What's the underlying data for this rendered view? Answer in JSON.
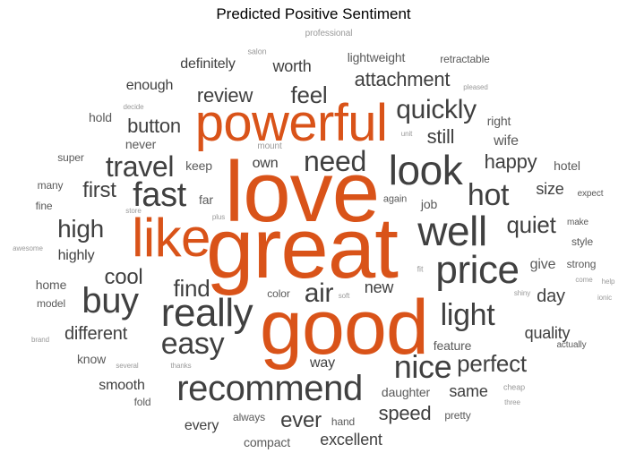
{
  "title": "Predicted Positive Sentiment",
  "colors": {
    "highlight": "#d95319",
    "dark": "#404040",
    "mid": "#5a5a5a",
    "light": "#9a9a9a"
  },
  "words": [
    {
      "text": "love",
      "color": "highlight"
    },
    {
      "text": "great",
      "color": "highlight"
    },
    {
      "text": "good",
      "color": "highlight"
    },
    {
      "text": "powerful",
      "color": "highlight"
    },
    {
      "text": "like",
      "color": "highlight"
    },
    {
      "text": "look",
      "color": "dark"
    },
    {
      "text": "well",
      "color": "dark"
    },
    {
      "text": "price",
      "color": "dark"
    },
    {
      "text": "really",
      "color": "dark"
    },
    {
      "text": "recommend",
      "color": "dark"
    },
    {
      "text": "nice",
      "color": "dark"
    },
    {
      "text": "buy",
      "color": "dark"
    },
    {
      "text": "fast",
      "color": "dark"
    },
    {
      "text": "easy",
      "color": "dark"
    },
    {
      "text": "hot",
      "color": "dark"
    },
    {
      "text": "light",
      "color": "dark"
    },
    {
      "text": "need",
      "color": "dark"
    },
    {
      "text": "travel",
      "color": "dark"
    },
    {
      "text": "quickly",
      "color": "dark"
    },
    {
      "text": "air",
      "color": "dark"
    },
    {
      "text": "perfect",
      "color": "dark"
    },
    {
      "text": "find",
      "color": "dark"
    },
    {
      "text": "high",
      "color": "dark"
    },
    {
      "text": "quiet",
      "color": "dark"
    },
    {
      "text": "cool",
      "color": "dark"
    },
    {
      "text": "feel",
      "color": "dark"
    },
    {
      "text": "happy",
      "color": "dark"
    },
    {
      "text": "first",
      "color": "dark"
    },
    {
      "text": "button",
      "color": "dark"
    },
    {
      "text": "review",
      "color": "dark"
    },
    {
      "text": "attachment",
      "color": "dark"
    },
    {
      "text": "speed",
      "color": "dark"
    },
    {
      "text": "ever",
      "color": "dark"
    },
    {
      "text": "still",
      "color": "dark"
    },
    {
      "text": "different",
      "color": "dark"
    },
    {
      "text": "day",
      "color": "dark"
    },
    {
      "text": "new",
      "color": "dark"
    },
    {
      "text": "excellent",
      "color": "dark"
    },
    {
      "text": "quality",
      "color": "dark"
    },
    {
      "text": "worth",
      "color": "dark"
    },
    {
      "text": "definitely",
      "color": "dark"
    },
    {
      "text": "enough",
      "color": "dark"
    },
    {
      "text": "smooth",
      "color": "dark"
    },
    {
      "text": "size",
      "color": "dark"
    },
    {
      "text": "same",
      "color": "dark"
    },
    {
      "text": "highly",
      "color": "dark"
    },
    {
      "text": "every",
      "color": "dark"
    },
    {
      "text": "own",
      "color": "dark"
    },
    {
      "text": "way",
      "color": "dark"
    },
    {
      "text": "wife",
      "color": "mid"
    },
    {
      "text": "give",
      "color": "mid"
    },
    {
      "text": "hold",
      "color": "mid"
    },
    {
      "text": "never",
      "color": "mid"
    },
    {
      "text": "keep",
      "color": "mid"
    },
    {
      "text": "home",
      "color": "mid"
    },
    {
      "text": "lightweight",
      "color": "mid"
    },
    {
      "text": "job",
      "color": "mid"
    },
    {
      "text": "far",
      "color": "mid"
    },
    {
      "text": "hotel",
      "color": "mid"
    },
    {
      "text": "daughter",
      "color": "mid"
    },
    {
      "text": "compact",
      "color": "mid"
    },
    {
      "text": "super",
      "color": "mid"
    },
    {
      "text": "many",
      "color": "mid"
    },
    {
      "text": "fine",
      "color": "mid"
    },
    {
      "text": "model",
      "color": "mid"
    },
    {
      "text": "know",
      "color": "mid"
    },
    {
      "text": "fold",
      "color": "mid"
    },
    {
      "text": "always",
      "color": "mid"
    },
    {
      "text": "hand",
      "color": "mid"
    },
    {
      "text": "pretty",
      "color": "mid"
    },
    {
      "text": "color",
      "color": "mid"
    },
    {
      "text": "feature",
      "color": "mid"
    },
    {
      "text": "retractable",
      "color": "mid"
    },
    {
      "text": "right",
      "color": "mid"
    },
    {
      "text": "style",
      "color": "mid"
    },
    {
      "text": "strong",
      "color": "mid"
    },
    {
      "text": "expect",
      "color": "mid"
    },
    {
      "text": "make",
      "color": "mid"
    },
    {
      "text": "again",
      "color": "mid"
    },
    {
      "text": "actually",
      "color": "mid"
    },
    {
      "text": "cheap",
      "color": "light"
    },
    {
      "text": "three",
      "color": "light"
    },
    {
      "text": "help",
      "color": "light"
    },
    {
      "text": "come",
      "color": "light"
    },
    {
      "text": "ionic",
      "color": "light"
    },
    {
      "text": "shiny",
      "color": "light"
    },
    {
      "text": "professional",
      "color": "light"
    },
    {
      "text": "salon",
      "color": "light"
    },
    {
      "text": "pleased",
      "color": "light"
    },
    {
      "text": "decide",
      "color": "light"
    },
    {
      "text": "unit",
      "color": "light"
    },
    {
      "text": "mount",
      "color": "light"
    },
    {
      "text": "store",
      "color": "light"
    },
    {
      "text": "plus",
      "color": "light"
    },
    {
      "text": "awesome",
      "color": "light"
    },
    {
      "text": "brand",
      "color": "light"
    },
    {
      "text": "several",
      "color": "light"
    },
    {
      "text": "thanks",
      "color": "light"
    },
    {
      "text": "soft",
      "color": "light"
    },
    {
      "text": "fit",
      "color": "light"
    }
  ]
}
